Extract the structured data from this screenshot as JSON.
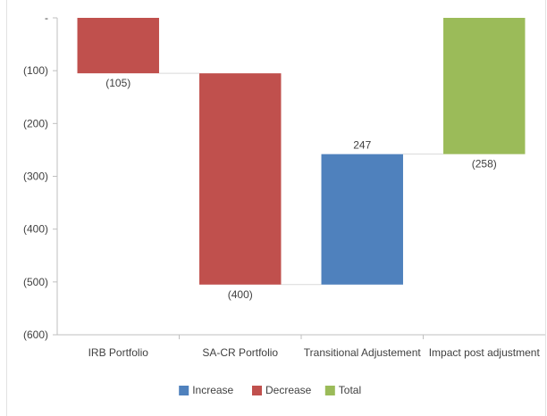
{
  "chart_data": {
    "type": "waterfall",
    "categories": [
      "IRB Portfolio",
      "SA-CR Portfolio",
      "Transitional Adjustement",
      "Impact post adjustment"
    ],
    "values": [
      -105,
      -400,
      247,
      -258
    ],
    "value_labels": [
      "(105)",
      "(400)",
      "247",
      "(258)"
    ],
    "kinds": [
      "decrease",
      "decrease",
      "increase",
      "total"
    ],
    "ylim": [
      -600,
      0
    ],
    "y_ticks": [
      0,
      -100,
      -200,
      -300,
      -400,
      -500,
      -600
    ],
    "y_tick_labels": [
      "-",
      "(100)",
      "(200)",
      "(300)",
      "(400)",
      "(500)",
      "(600)"
    ],
    "legend": {
      "placement": "bottom",
      "entries": [
        {
          "key": "increase",
          "label": "Increase"
        },
        {
          "key": "decrease",
          "label": "Decrease"
        },
        {
          "key": "total",
          "label": "Total"
        }
      ]
    },
    "colors": {
      "increase": "#4f81bd",
      "decrease": "#c0504d",
      "total": "#9bbb59",
      "axis": "#bfbfbf",
      "connector": "#d9d9d9"
    }
  }
}
